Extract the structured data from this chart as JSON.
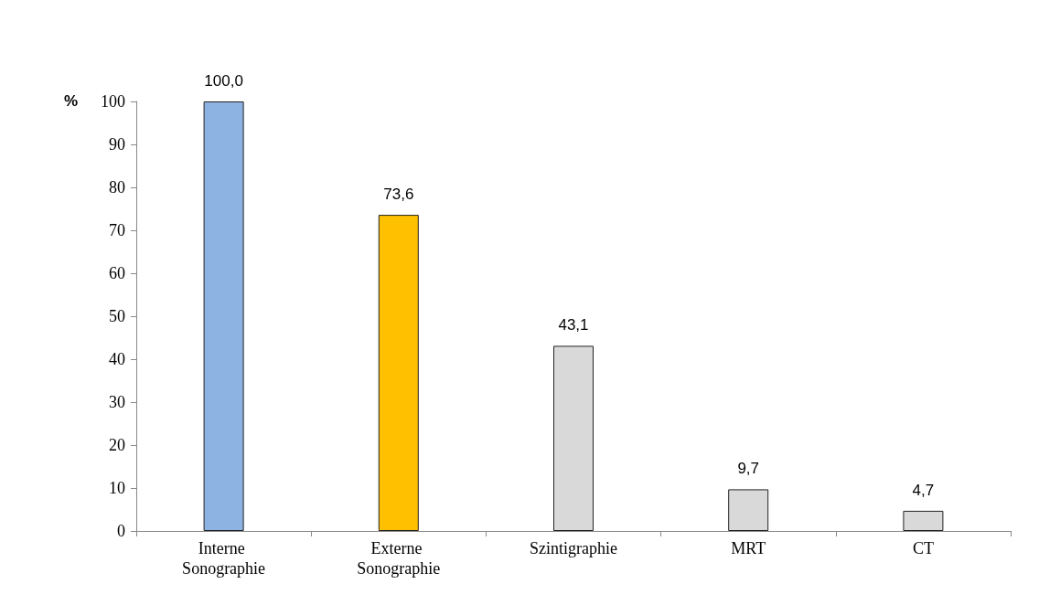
{
  "chart_data": {
    "type": "bar",
    "ylabel": "%",
    "categories": [
      "Interne Sonographie",
      "Externe Sonographie",
      "Szintigraphie",
      "MRT",
      "CT"
    ],
    "values": [
      100.0,
      73.6,
      43.1,
      9.7,
      4.7
    ],
    "colors": [
      "#8db3e2",
      "#ffc000",
      "#d9d9d9",
      "#d9d9d9",
      "#d9d9d9"
    ],
    "value_labels": [
      "100,0",
      "73,6",
      "43,1",
      "9,7",
      "4,7"
    ],
    "ylim": [
      0,
      100
    ],
    "yticks": [
      0,
      10,
      20,
      30,
      40,
      50,
      60,
      70,
      80,
      90,
      100
    ],
    "grid": false
  }
}
